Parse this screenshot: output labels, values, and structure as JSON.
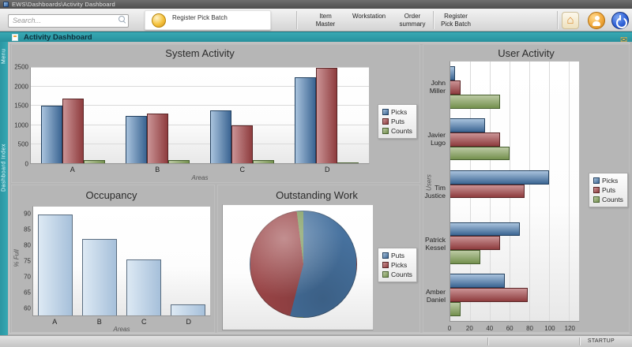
{
  "window": {
    "title": "EWS\\Dashboards\\Activity Dashboard",
    "status_right": "STARTUP"
  },
  "toolbar": {
    "search_placeholder": "Search...",
    "quick_button_label": "Register Pick Batch",
    "menu_items": [
      {
        "label": "Item Master"
      },
      {
        "label": "Workstation"
      },
      {
        "label": "Order summary"
      },
      {
        "label": "Register Pick Batch"
      }
    ],
    "window_icons": [
      {
        "name": "home-icon"
      },
      {
        "name": "user-icon"
      },
      {
        "name": "power-icon"
      }
    ]
  },
  "header": {
    "title": "Activity Dashboard",
    "accent_color": "#2f9da8"
  },
  "sidebar": {
    "top_tab": "Menu",
    "strip_tab": "Dashboard Index"
  },
  "palette": {
    "blue": {
      "light": "#a9c3dd",
      "dark": "#3b6593",
      "border": "#22405f",
      "pie": "#47729f"
    },
    "red": {
      "light": "#cb9496",
      "dark": "#8e3c3e",
      "border": "#5a2526",
      "pie": "#9a4547"
    },
    "green": {
      "light": "#bccaa4",
      "dark": "#74904e",
      "border": "#47602f",
      "pie": "#7d9b5c"
    },
    "steel": {
      "light": "#dde9f4",
      "dark": "#a6c0da",
      "border": "#5a6d80",
      "pie": "#a6c0da"
    }
  },
  "chart_data": [
    {
      "type": "bar",
      "title": "System Activity",
      "categories": [
        "A",
        "B",
        "C",
        "D"
      ],
      "series": [
        {
          "name": "Picks",
          "color": "blue",
          "values": [
            1500,
            1250,
            1375,
            2250
          ]
        },
        {
          "name": "Puts",
          "color": "red",
          "values": [
            1700,
            1300,
            1000,
            2500
          ]
        },
        {
          "name": "Counts",
          "color": "green",
          "values": [
            75,
            80,
            85,
            25
          ]
        }
      ],
      "xlabel": "Areas",
      "ylim": [
        0,
        2500
      ],
      "yticks": [
        0,
        500,
        1000,
        1500,
        2000,
        2500
      ],
      "grid": true,
      "legend_position": "right"
    },
    {
      "type": "bar-horizontal",
      "title": "User Activity",
      "categories": [
        "John Miller",
        "Javier Lugo",
        "Tim Justice",
        "Patrick Kessel",
        "Amber Daniel"
      ],
      "series": [
        {
          "name": "Picks",
          "color": "blue",
          "values": [
            5,
            35,
            100,
            70,
            55
          ]
        },
        {
          "name": "Puts",
          "color": "red",
          "values": [
            10,
            50,
            75,
            50,
            78
          ]
        },
        {
          "name": "Counts",
          "color": "green",
          "values": [
            50,
            60,
            0,
            30,
            10
          ]
        }
      ],
      "ylabel": "Users",
      "xlim": [
        0,
        130
      ],
      "xticks": [
        0,
        20,
        40,
        60,
        80,
        100,
        120
      ],
      "grid": true,
      "legend_position": "right"
    },
    {
      "type": "bar",
      "title": "Occupancy",
      "categories": [
        "A",
        "B",
        "C",
        "D"
      ],
      "series": [
        {
          "name": "% Full",
          "color": "steel",
          "values": [
            90,
            82,
            75.5,
            61
          ]
        }
      ],
      "xlabel": "Areas",
      "ylabel": "% Full",
      "ylim": [
        57.5,
        92.5
      ],
      "yticks": [
        60,
        65,
        70,
        75,
        80,
        85,
        90
      ],
      "grid": false,
      "single": true
    },
    {
      "type": "pie",
      "title": "Outstanding Work",
      "slices": [
        {
          "name": "Puts",
          "color": "blue",
          "value": 54
        },
        {
          "name": "Picks",
          "color": "red",
          "value": 44
        },
        {
          "name": "Counts",
          "color": "green",
          "value": 2
        }
      ],
      "legend_position": "right"
    }
  ]
}
